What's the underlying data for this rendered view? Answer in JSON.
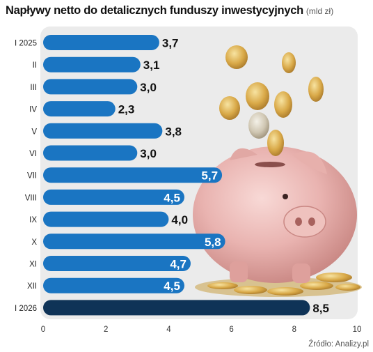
{
  "title": "Napływy netto do detalicznych funduszy inwestycyjnych",
  "unit": "(mld zł)",
  "source": "Źródło: Analizy.pl",
  "colors": {
    "bar": "#1a75c2",
    "bar_highlight": "#0f3357",
    "panel": "#ebebeb",
    "label_dark": "#111111",
    "label_light": "#ffffff"
  },
  "illustration": "piggy-bank-with-coins",
  "chart_data": {
    "type": "bar",
    "orientation": "horizontal",
    "categories": [
      "I 2025",
      "II",
      "III",
      "IV",
      "V",
      "VI",
      "VII",
      "VIII",
      "IX",
      "X",
      "XI",
      "XII",
      "I 2026"
    ],
    "values": [
      3.7,
      3.1,
      3.0,
      2.3,
      3.8,
      3.0,
      5.7,
      4.5,
      4.0,
      5.8,
      4.7,
      4.5,
      8.5
    ],
    "value_labels": [
      "3,7",
      "3,1",
      "3,0",
      "2,3",
      "3,8",
      "3,0",
      "5,7",
      "4,5",
      "4,0",
      "5,8",
      "4,7",
      "4,5",
      "8,5"
    ],
    "label_inside": [
      false,
      false,
      false,
      false,
      false,
      false,
      true,
      true,
      false,
      true,
      true,
      true,
      false
    ],
    "highlight_index": 12,
    "xlim": [
      0,
      10
    ],
    "xticks": [
      0,
      2,
      4,
      6,
      8,
      10
    ],
    "grid": false
  }
}
